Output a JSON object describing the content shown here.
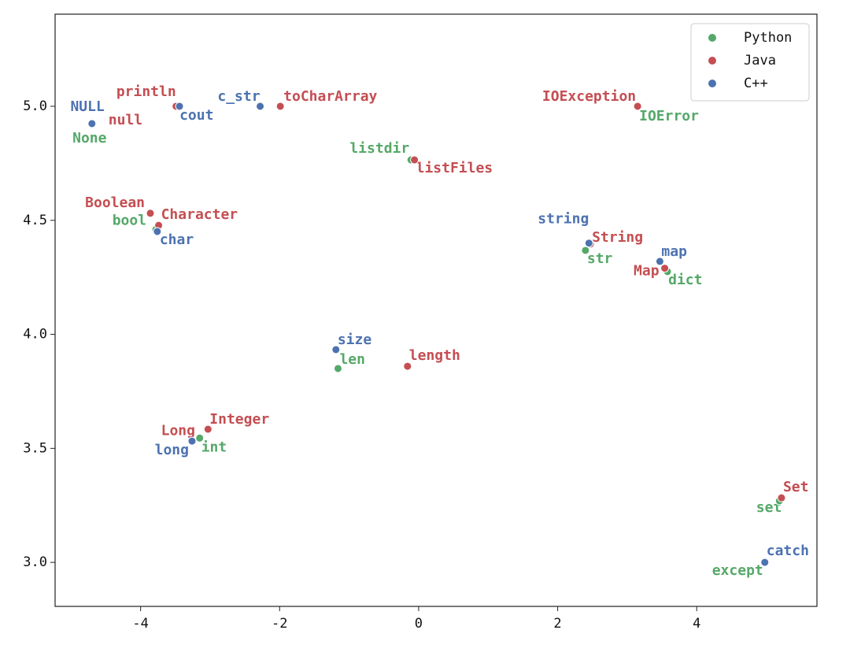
{
  "chart_data": {
    "type": "scatter",
    "xlim": [
      -5.23,
      5.73
    ],
    "ylim": [
      2.807,
      5.404
    ],
    "xticks": [
      -4,
      -2,
      0,
      2,
      4
    ],
    "yticks": [
      {
        "value": 3,
        "label": "3.0"
      },
      {
        "value": 3.5,
        "label": "3.5"
      },
      {
        "value": 4,
        "label": "4.0"
      },
      {
        "value": 4.5,
        "label": "4.5"
      },
      {
        "value": 5,
        "label": "5.0"
      }
    ],
    "legend": "upper right",
    "series": [
      {
        "name": "Python",
        "color": "#55a868",
        "labels": [
          "None",
          "bool",
          "listdir",
          "str",
          "dict",
          "len",
          "int",
          "IOError",
          "set",
          "except"
        ],
        "x": [
          -4.7,
          -3.78,
          -0.11,
          2.4,
          3.58,
          -1.16,
          -3.15,
          3.15,
          5.19,
          4.98
        ],
        "values": [
          4.924,
          4.46,
          4.765,
          4.368,
          4.275,
          3.85,
          3.545,
          5.0,
          3.27,
          3.0
        ]
      },
      {
        "name": "Java",
        "color": "#c44e52",
        "labels": [
          "println",
          "null",
          "toCharArray",
          "IOException",
          "listFiles",
          "Boolean",
          "Character",
          "String",
          "Map",
          "length",
          "Integer",
          "Long",
          "Set"
        ],
        "x": [
          -3.49,
          -4.7,
          -1.99,
          3.15,
          -0.06,
          -3.86,
          -3.74,
          2.47,
          3.54,
          -0.16,
          -3.03,
          -3.26,
          5.22
        ],
        "values": [
          5.0,
          4.924,
          5.0,
          5.0,
          4.765,
          4.531,
          4.478,
          4.396,
          4.29,
          3.86,
          3.584,
          3.53,
          3.283
        ]
      },
      {
        "name": "C++",
        "color": "#4c72b0",
        "labels": [
          "NULL",
          "cout",
          "c_str",
          "char",
          "string",
          "map",
          "size",
          "long",
          "catch"
        ],
        "x": [
          -4.7,
          -3.44,
          -2.28,
          -3.76,
          2.45,
          3.47,
          -1.19,
          -3.26,
          4.98
        ],
        "values": [
          4.924,
          5.0,
          5.0,
          4.451,
          4.4,
          4.32,
          3.933,
          3.532,
          3.0
        ]
      }
    ]
  }
}
